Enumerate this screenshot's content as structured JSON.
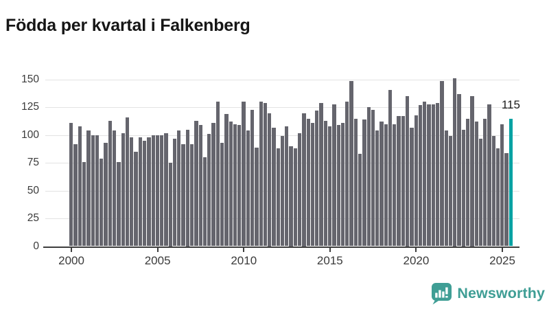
{
  "title": "Födda per kvartal i Falkenberg",
  "chart_data": {
    "type": "bar",
    "title": "Födda per kvartal i Falkenberg",
    "xlabel": "",
    "ylabel": "",
    "ylim": [
      0,
      150
    ],
    "y_ticks": [
      0,
      25,
      50,
      75,
      100,
      125,
      150
    ],
    "x_tick_years": [
      2000,
      2005,
      2010,
      2015,
      2020,
      2025
    ],
    "x_tick_labels": [
      "2000",
      "2005",
      "2010",
      "2015",
      "2020",
      "2025"
    ],
    "grid": "horizontal",
    "legend": "none",
    "first_period": "2000 Q1",
    "last_period": "2025 Q3",
    "quarters_per_year": 4,
    "values": [
      111,
      92,
      108,
      76,
      104,
      100,
      100,
      79,
      93,
      113,
      104,
      76,
      102,
      116,
      98,
      85,
      98,
      95,
      98,
      100,
      100,
      100,
      102,
      75,
      97,
      104,
      92,
      105,
      92,
      113,
      109,
      80,
      101,
      111,
      130,
      93,
      119,
      112,
      110,
      109,
      130,
      104,
      123,
      89,
      130,
      129,
      120,
      107,
      88,
      99,
      108,
      90,
      88,
      102,
      120,
      115,
      111,
      122,
      129,
      113,
      108,
      128,
      109,
      111,
      130,
      149,
      115,
      83,
      114,
      125,
      123,
      104,
      112,
      110,
      141,
      110,
      117,
      117,
      135,
      107,
      118,
      127,
      130,
      128,
      128,
      129,
      149,
      104,
      99,
      151,
      137,
      105,
      115,
      135,
      112,
      97,
      115,
      128,
      99,
      88,
      110,
      84,
      115
    ],
    "highlight": {
      "index": 102,
      "period": "2025 Q3",
      "value": 115,
      "label": "115"
    }
  },
  "colors": {
    "bar": "#65656d",
    "highlight_bar": "#00a2a3",
    "gridline": "#e3e3e3",
    "axis": "#3d3d3d",
    "tick_text": "#3a3a3a",
    "title_text": "#161616",
    "logo": "#3f9e95"
  },
  "branding": {
    "logo_text": "Newsworthy",
    "logo_icon": "bar-chart-speech-bubble-icon"
  }
}
